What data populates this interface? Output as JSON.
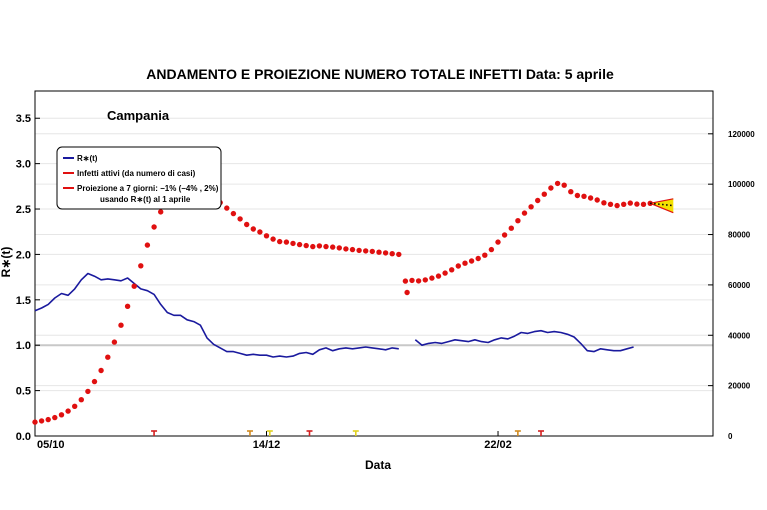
{
  "colors": {
    "rt_line": "#1a1a9e",
    "infected_points": "#e01010",
    "projection_fill": "#f3e000",
    "projection_edge": "#e01010",
    "reference_line": "#c8c8c8",
    "grid": "#e6e6e6",
    "marker_red": "#d42020",
    "marker_orange": "#d08a20",
    "marker_yellow": "#e0d020"
  },
  "chart_data": {
    "type": "line",
    "title": "ANDAMENTO E PROIEZIONE NUMERO TOTALE INFETTI      Data: 5 aprile",
    "region_label": "Campania",
    "xlabel": "Data",
    "ylabel": "R∗(t)",
    "x_tick_labels": [
      "05/10",
      "14/12",
      "22/02"
    ],
    "x_tick_days": [
      0,
      70,
      140
    ],
    "x_range_days": [
      0,
      205
    ],
    "ylim_left": [
      0,
      3.8
    ],
    "y_ticks_left": [
      "0.0",
      "0.5",
      "1.0",
      "1.5",
      "2.0",
      "2.5",
      "3.0",
      "3.5"
    ],
    "ylim_right": [
      0,
      137000
    ],
    "y_ticks_right": [
      "0",
      "20000",
      "40000",
      "60000",
      "80000",
      "100000",
      "120000"
    ],
    "reference_line_y": 1.0,
    "grid": true,
    "legend_position": "top-left",
    "legend": [
      "R∗(t)",
      "Infetti attivi (da numero di casi)",
      "Proiezione a 7 giorni: −1% (−4% , 2%)",
      "usando R∗(t) al 1 aprile"
    ],
    "series": [
      {
        "name": "R∗(t)",
        "axis": "left",
        "segments": [
          {
            "x": [
              0,
              2,
              4,
              6,
              8,
              10,
              12,
              14,
              16,
              18,
              20,
              22,
              24,
              26,
              28,
              30,
              32,
              34,
              36,
              38,
              40,
              42,
              44,
              46,
              48,
              50,
              52,
              54,
              56,
              58,
              60,
              62,
              64,
              66,
              68,
              70,
              72,
              74,
              76,
              78,
              80,
              82,
              84,
              86,
              88,
              90,
              92,
              94,
              96,
              98,
              100,
              102,
              104,
              106,
              108,
              110
            ],
            "y": [
              1.38,
              1.41,
              1.45,
              1.52,
              1.57,
              1.55,
              1.62,
              1.72,
              1.79,
              1.76,
              1.72,
              1.73,
              1.72,
              1.71,
              1.74,
              1.68,
              1.62,
              1.6,
              1.56,
              1.45,
              1.36,
              1.33,
              1.33,
              1.28,
              1.26,
              1.22,
              1.08,
              1.01,
              0.97,
              0.93,
              0.93,
              0.91,
              0.89,
              0.9,
              0.89,
              0.89,
              0.87,
              0.88,
              0.87,
              0.88,
              0.91,
              0.92,
              0.9,
              0.95,
              0.97,
              0.94,
              0.96,
              0.97,
              0.96,
              0.97,
              0.98,
              0.97,
              0.96,
              0.95,
              0.97,
              0.96
            ]
          },
          {
            "x": [
              115,
              117,
              119,
              121,
              123,
              125,
              127,
              129,
              131,
              133,
              135,
              137,
              139,
              141,
              143,
              145,
              147,
              149,
              151,
              153,
              155,
              157,
              159,
              161,
              163,
              165,
              167,
              169,
              171,
              173,
              175,
              177,
              179,
              181
            ],
            "y": [
              1.06,
              1.0,
              1.02,
              1.03,
              1.02,
              1.04,
              1.06,
              1.05,
              1.04,
              1.06,
              1.04,
              1.03,
              1.06,
              1.08,
              1.07,
              1.1,
              1.14,
              1.13,
              1.15,
              1.16,
              1.14,
              1.15,
              1.14,
              1.12,
              1.09,
              1.02,
              0.94,
              0.93,
              0.96,
              0.95,
              0.94,
              0.94,
              0.96,
              0.98
            ]
          }
        ]
      },
      {
        "name": "Infetti attivi (da numero di casi)",
        "axis": "right",
        "segments": [
          {
            "x": [
              0,
              2,
              4,
              6,
              8,
              10,
              12,
              14,
              16,
              18,
              20,
              22,
              24,
              26,
              28,
              30,
              32,
              34,
              36,
              38,
              40,
              42,
              44,
              46,
              48,
              50,
              52,
              54,
              56,
              58,
              60,
              62,
              64,
              66,
              68,
              70,
              72,
              74,
              76,
              78,
              80,
              82,
              84,
              86,
              88,
              90,
              92,
              94,
              96,
              98,
              100,
              102,
              104,
              106,
              108,
              110
            ],
            "y": [
              5500,
              6000,
              6500,
              7300,
              8400,
              9900,
              11800,
              14400,
              17700,
              21600,
              26000,
              31300,
              37300,
              44000,
              51500,
              59500,
              67600,
              75800,
              83000,
              89000,
              94000,
              97000,
              98500,
              99000,
              98800,
              98000,
              96400,
              94800,
              92700,
              90500,
              88300,
              86200,
              84000,
              82200,
              81000,
              79500,
              78200,
              77200,
              77000,
              76500,
              76000,
              75600,
              75200,
              75500,
              75200,
              75000,
              74700,
              74300,
              74000,
              73700,
              73500,
              73300,
              73000,
              72700,
              72400,
              72100
            ]
          },
          {
            "x": [
              112,
              112.5,
              114,
              116,
              118,
              120,
              122,
              124,
              126,
              128,
              130,
              132,
              134,
              136,
              138,
              140,
              142,
              144,
              146,
              148,
              150,
              152,
              154,
              156,
              158,
              160,
              162,
              164,
              166,
              168,
              170,
              172,
              174,
              176,
              178,
              180,
              182,
              184,
              186
            ],
            "y": [
              61500,
              57000,
              61800,
              61600,
              62000,
              62700,
              63500,
              64700,
              66000,
              67500,
              68600,
              69500,
              70500,
              71800,
              74000,
              77000,
              79800,
              82500,
              85500,
              88500,
              91000,
              93500,
              96000,
              98500,
              100300,
              99600,
              97000,
              95500,
              95200,
              94500,
              93700,
              92600,
              92000,
              91500,
              92000,
              92500,
              92100,
              92000,
              92400
            ]
          }
        ]
      },
      {
        "name": "Proiezione a 7 giorni",
        "axis": "right",
        "type": "band",
        "x": [
          186,
          193
        ],
        "center": [
          92400,
          91500
        ],
        "lower": [
          92400,
          88700
        ],
        "upper": [
          92400,
          94200
        ]
      }
    ],
    "x_markers": [
      {
        "day": 36,
        "color": "marker_red"
      },
      {
        "day": 65,
        "color": "marker_orange"
      },
      {
        "day": 71,
        "color": "marker_yellow"
      },
      {
        "day": 83,
        "color": "marker_red"
      },
      {
        "day": 97,
        "color": "marker_yellow"
      },
      {
        "day": 146,
        "color": "marker_orange"
      },
      {
        "day": 153,
        "color": "marker_red"
      }
    ]
  }
}
